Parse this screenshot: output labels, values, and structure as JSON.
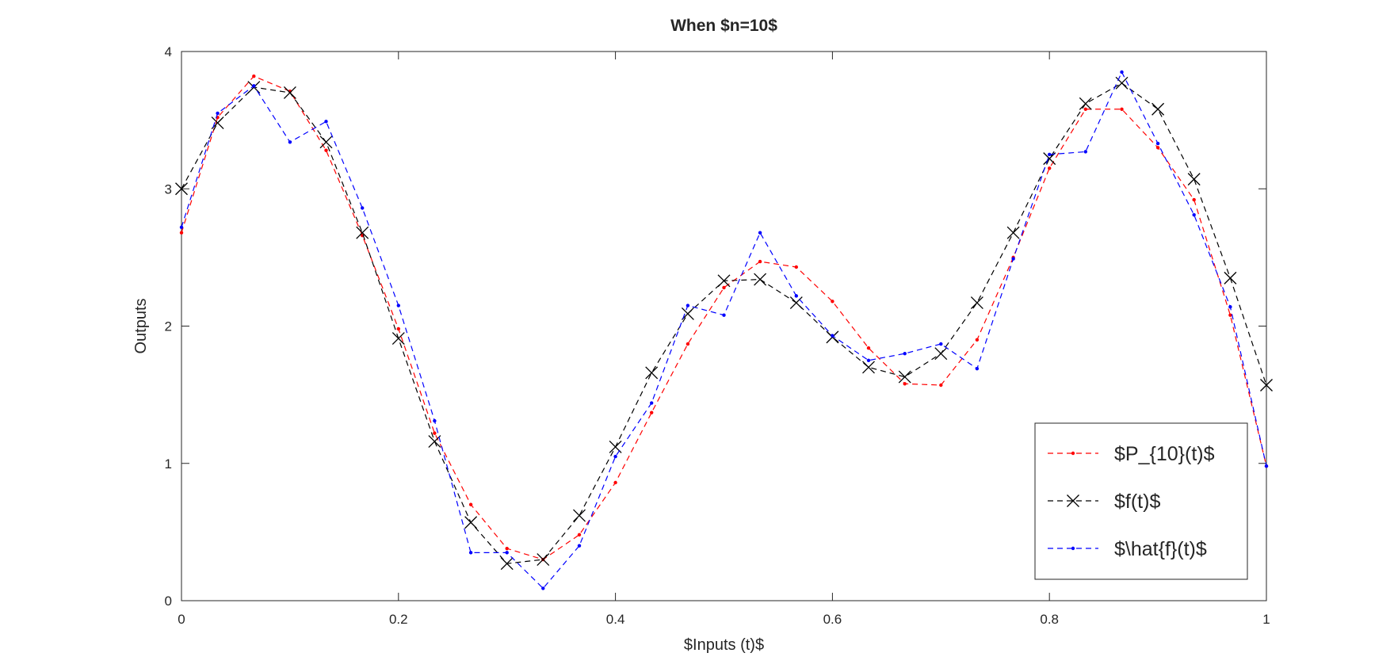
{
  "chart_data": {
    "type": "line",
    "title": "When $n=10$",
    "xlabel": "$Inputs (t)$",
    "ylabel": "Outputs",
    "xlim": [
      0,
      1
    ],
    "ylim": [
      0,
      4
    ],
    "x_ticks": [
      0,
      0.2,
      0.4,
      0.6,
      0.8,
      1
    ],
    "y_ticks": [
      0,
      1,
      2,
      3,
      4
    ],
    "x_tick_labels": [
      "0",
      "0.2",
      "0.4",
      "0.6",
      "0.8",
      "1"
    ],
    "y_tick_labels": [
      "0",
      "1",
      "2",
      "3",
      "4"
    ],
    "grid": false,
    "legend_position": "bottom-right",
    "x": [
      0,
      0.0333,
      0.0667,
      0.1,
      0.1333,
      0.1667,
      0.2,
      0.2333,
      0.2667,
      0.3,
      0.3333,
      0.3667,
      0.4,
      0.4333,
      0.4667,
      0.5,
      0.5333,
      0.5667,
      0.6,
      0.6333,
      0.6667,
      0.7,
      0.7333,
      0.7667,
      0.8,
      0.8333,
      0.8667,
      0.9,
      0.9333,
      0.9667,
      1
    ],
    "series": [
      {
        "name": "$P_{10}(t)$",
        "color": "#ff0000",
        "line_style": "dashed",
        "marker": "dot",
        "values": [
          2.68,
          3.52,
          3.82,
          3.71,
          3.28,
          2.66,
          1.98,
          1.22,
          0.7,
          0.38,
          0.3,
          0.48,
          0.86,
          1.37,
          1.87,
          2.28,
          2.47,
          2.43,
          2.18,
          1.84,
          1.58,
          1.57,
          1.9,
          2.5,
          3.15,
          3.58,
          3.58,
          3.3,
          2.92,
          2.08,
          0.98
        ]
      },
      {
        "name": "$f(t)$",
        "color": "#000000",
        "line_style": "dashed",
        "marker": "x",
        "values": [
          3.0,
          3.48,
          3.74,
          3.7,
          3.34,
          2.68,
          1.91,
          1.16,
          0.57,
          0.27,
          0.3,
          0.62,
          1.12,
          1.66,
          2.09,
          2.33,
          2.34,
          2.17,
          1.92,
          1.7,
          1.63,
          1.8,
          2.17,
          2.68,
          3.22,
          3.62,
          3.77,
          3.58,
          3.07,
          2.35,
          1.57
        ]
      },
      {
        "name": "$\\hat{f}(t)$",
        "color": "#0000ff",
        "line_style": "dashed",
        "marker": "dot",
        "values": [
          2.72,
          3.55,
          3.75,
          3.34,
          3.49,
          2.86,
          2.15,
          1.31,
          0.35,
          0.35,
          0.09,
          0.4,
          1.05,
          1.44,
          2.15,
          2.08,
          2.68,
          2.22,
          1.93,
          1.75,
          1.8,
          1.87,
          1.69,
          2.49,
          3.25,
          3.27,
          3.85,
          3.33,
          2.81,
          2.14,
          0.98
        ]
      }
    ]
  }
}
